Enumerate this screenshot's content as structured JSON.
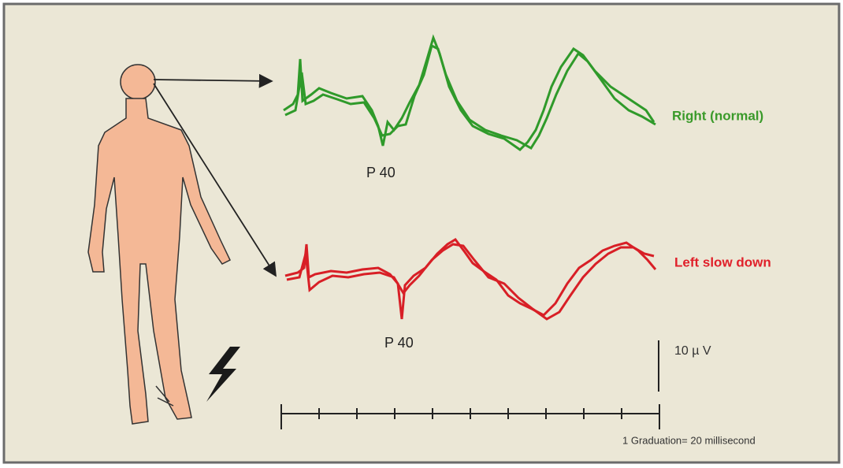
{
  "traces": [
    {
      "label": "Right (normal)",
      "peak_label": "P 40"
    },
    {
      "label": "Left slow down",
      "peak_label": "P 40"
    }
  ],
  "scale": {
    "amplitude": "10 µ V",
    "time": "1 Graduation= 20 millisecond"
  }
}
